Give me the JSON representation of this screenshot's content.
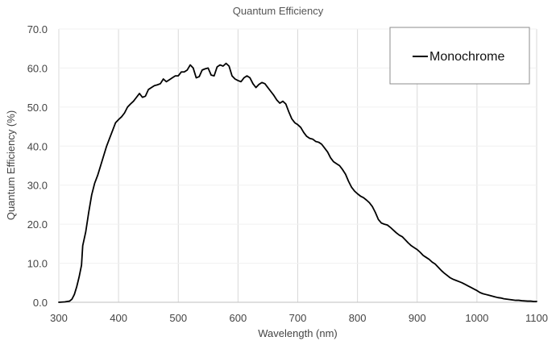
{
  "chart_data": {
    "type": "line",
    "title": "Quantum Efficiency",
    "xlabel": "Wavelength (nm)",
    "ylabel": "Quantum Efficiency (%)",
    "xlim": [
      300,
      1100
    ],
    "ylim": [
      0,
      70
    ],
    "x_ticks": [
      300,
      400,
      500,
      600,
      700,
      800,
      900,
      1000,
      1100
    ],
    "x_tick_labels": [
      "300",
      "400",
      "500",
      "600",
      "700",
      "800",
      "900",
      "1000",
      "1100"
    ],
    "y_ticks": [
      0,
      10,
      20,
      30,
      40,
      50,
      60,
      70
    ],
    "y_tick_labels": [
      "0.0",
      "10.0",
      "20.0",
      "30.0",
      "40.0",
      "50.0",
      "60.0",
      "70.0"
    ],
    "grid": "vertical",
    "legend_position": "top-right",
    "series": [
      {
        "name": "Monochrome",
        "color": "#000000",
        "points": [
          [
            300,
            0.0
          ],
          [
            310,
            0.1
          ],
          [
            318,
            0.3
          ],
          [
            322,
            0.8
          ],
          [
            326,
            2.0
          ],
          [
            330,
            4.0
          ],
          [
            334,
            6.5
          ],
          [
            338,
            9.5
          ],
          [
            340,
            14.5
          ],
          [
            345,
            18.0
          ],
          [
            350,
            23.0
          ],
          [
            355,
            27.5
          ],
          [
            360,
            30.5
          ],
          [
            365,
            32.5
          ],
          [
            370,
            35.0
          ],
          [
            375,
            37.5
          ],
          [
            380,
            40.0
          ],
          [
            385,
            42.0
          ],
          [
            390,
            44.0
          ],
          [
            395,
            46.0
          ],
          [
            400,
            46.8
          ],
          [
            405,
            47.5
          ],
          [
            410,
            48.5
          ],
          [
            415,
            50.0
          ],
          [
            420,
            50.8
          ],
          [
            425,
            51.5
          ],
          [
            430,
            52.5
          ],
          [
            435,
            53.5
          ],
          [
            440,
            52.5
          ],
          [
            445,
            52.8
          ],
          [
            450,
            54.5
          ],
          [
            455,
            55.0
          ],
          [
            460,
            55.5
          ],
          [
            465,
            55.7
          ],
          [
            470,
            56.0
          ],
          [
            475,
            57.2
          ],
          [
            480,
            56.5
          ],
          [
            485,
            57.0
          ],
          [
            490,
            57.5
          ],
          [
            495,
            58.0
          ],
          [
            500,
            58.0
          ],
          [
            505,
            59.0
          ],
          [
            510,
            59.0
          ],
          [
            515,
            59.5
          ],
          [
            520,
            60.8
          ],
          [
            525,
            60.0
          ],
          [
            530,
            57.5
          ],
          [
            535,
            57.8
          ],
          [
            540,
            59.5
          ],
          [
            545,
            59.8
          ],
          [
            550,
            60.0
          ],
          [
            555,
            58.2
          ],
          [
            560,
            58.0
          ],
          [
            565,
            60.3
          ],
          [
            570,
            60.8
          ],
          [
            575,
            60.5
          ],
          [
            580,
            61.2
          ],
          [
            585,
            60.5
          ],
          [
            590,
            58.0
          ],
          [
            595,
            57.2
          ],
          [
            600,
            56.8
          ],
          [
            605,
            56.5
          ],
          [
            610,
            57.5
          ],
          [
            615,
            58.0
          ],
          [
            620,
            57.5
          ],
          [
            625,
            56.0
          ],
          [
            630,
            55.0
          ],
          [
            635,
            55.8
          ],
          [
            640,
            56.3
          ],
          [
            645,
            56.0
          ],
          [
            650,
            55.0
          ],
          [
            655,
            54.0
          ],
          [
            660,
            53.0
          ],
          [
            665,
            51.8
          ],
          [
            670,
            51.0
          ],
          [
            675,
            51.5
          ],
          [
            680,
            50.8
          ],
          [
            685,
            48.8
          ],
          [
            690,
            47.0
          ],
          [
            695,
            46.0
          ],
          [
            700,
            45.5
          ],
          [
            705,
            44.8
          ],
          [
            710,
            43.5
          ],
          [
            715,
            42.5
          ],
          [
            720,
            42.0
          ],
          [
            725,
            41.8
          ],
          [
            730,
            41.2
          ],
          [
            735,
            41.0
          ],
          [
            740,
            40.5
          ],
          [
            745,
            39.5
          ],
          [
            750,
            38.5
          ],
          [
            755,
            37.0
          ],
          [
            760,
            36.0
          ],
          [
            765,
            35.5
          ],
          [
            770,
            35.0
          ],
          [
            775,
            34.0
          ],
          [
            780,
            32.8
          ],
          [
            785,
            31.0
          ],
          [
            790,
            29.5
          ],
          [
            795,
            28.5
          ],
          [
            800,
            27.8
          ],
          [
            805,
            27.2
          ],
          [
            810,
            26.8
          ],
          [
            815,
            26.2
          ],
          [
            820,
            25.5
          ],
          [
            825,
            24.5
          ],
          [
            830,
            23.0
          ],
          [
            835,
            21.2
          ],
          [
            840,
            20.3
          ],
          [
            845,
            20.0
          ],
          [
            850,
            19.8
          ],
          [
            855,
            19.2
          ],
          [
            860,
            18.5
          ],
          [
            865,
            17.8
          ],
          [
            870,
            17.2
          ],
          [
            875,
            16.8
          ],
          [
            880,
            16.0
          ],
          [
            885,
            15.2
          ],
          [
            890,
            14.5
          ],
          [
            895,
            14.0
          ],
          [
            900,
            13.5
          ],
          [
            905,
            12.8
          ],
          [
            910,
            12.0
          ],
          [
            915,
            11.5
          ],
          [
            920,
            11.0
          ],
          [
            925,
            10.3
          ],
          [
            930,
            9.8
          ],
          [
            935,
            9.0
          ],
          [
            940,
            8.2
          ],
          [
            945,
            7.5
          ],
          [
            950,
            6.9
          ],
          [
            955,
            6.3
          ],
          [
            960,
            5.9
          ],
          [
            965,
            5.6
          ],
          [
            970,
            5.3
          ],
          [
            975,
            5.0
          ],
          [
            980,
            4.6
          ],
          [
            985,
            4.2
          ],
          [
            990,
            3.8
          ],
          [
            995,
            3.4
          ],
          [
            1000,
            3.0
          ],
          [
            1005,
            2.5
          ],
          [
            1010,
            2.2
          ],
          [
            1015,
            2.0
          ],
          [
            1020,
            1.8
          ],
          [
            1025,
            1.6
          ],
          [
            1030,
            1.4
          ],
          [
            1035,
            1.2
          ],
          [
            1040,
            1.1
          ],
          [
            1045,
            0.9
          ],
          [
            1050,
            0.8
          ],
          [
            1055,
            0.7
          ],
          [
            1060,
            0.6
          ],
          [
            1065,
            0.5
          ],
          [
            1070,
            0.5
          ],
          [
            1075,
            0.4
          ],
          [
            1080,
            0.35
          ],
          [
            1085,
            0.3
          ],
          [
            1090,
            0.3
          ],
          [
            1095,
            0.2
          ],
          [
            1100,
            0.2
          ]
        ]
      }
    ]
  },
  "colors": {
    "background": "#ffffff",
    "grid": "#d9d9d9",
    "axis": "#bfbfbf",
    "series": "#000000",
    "text": "#444444",
    "legend_border": "#8c8c8c"
  }
}
